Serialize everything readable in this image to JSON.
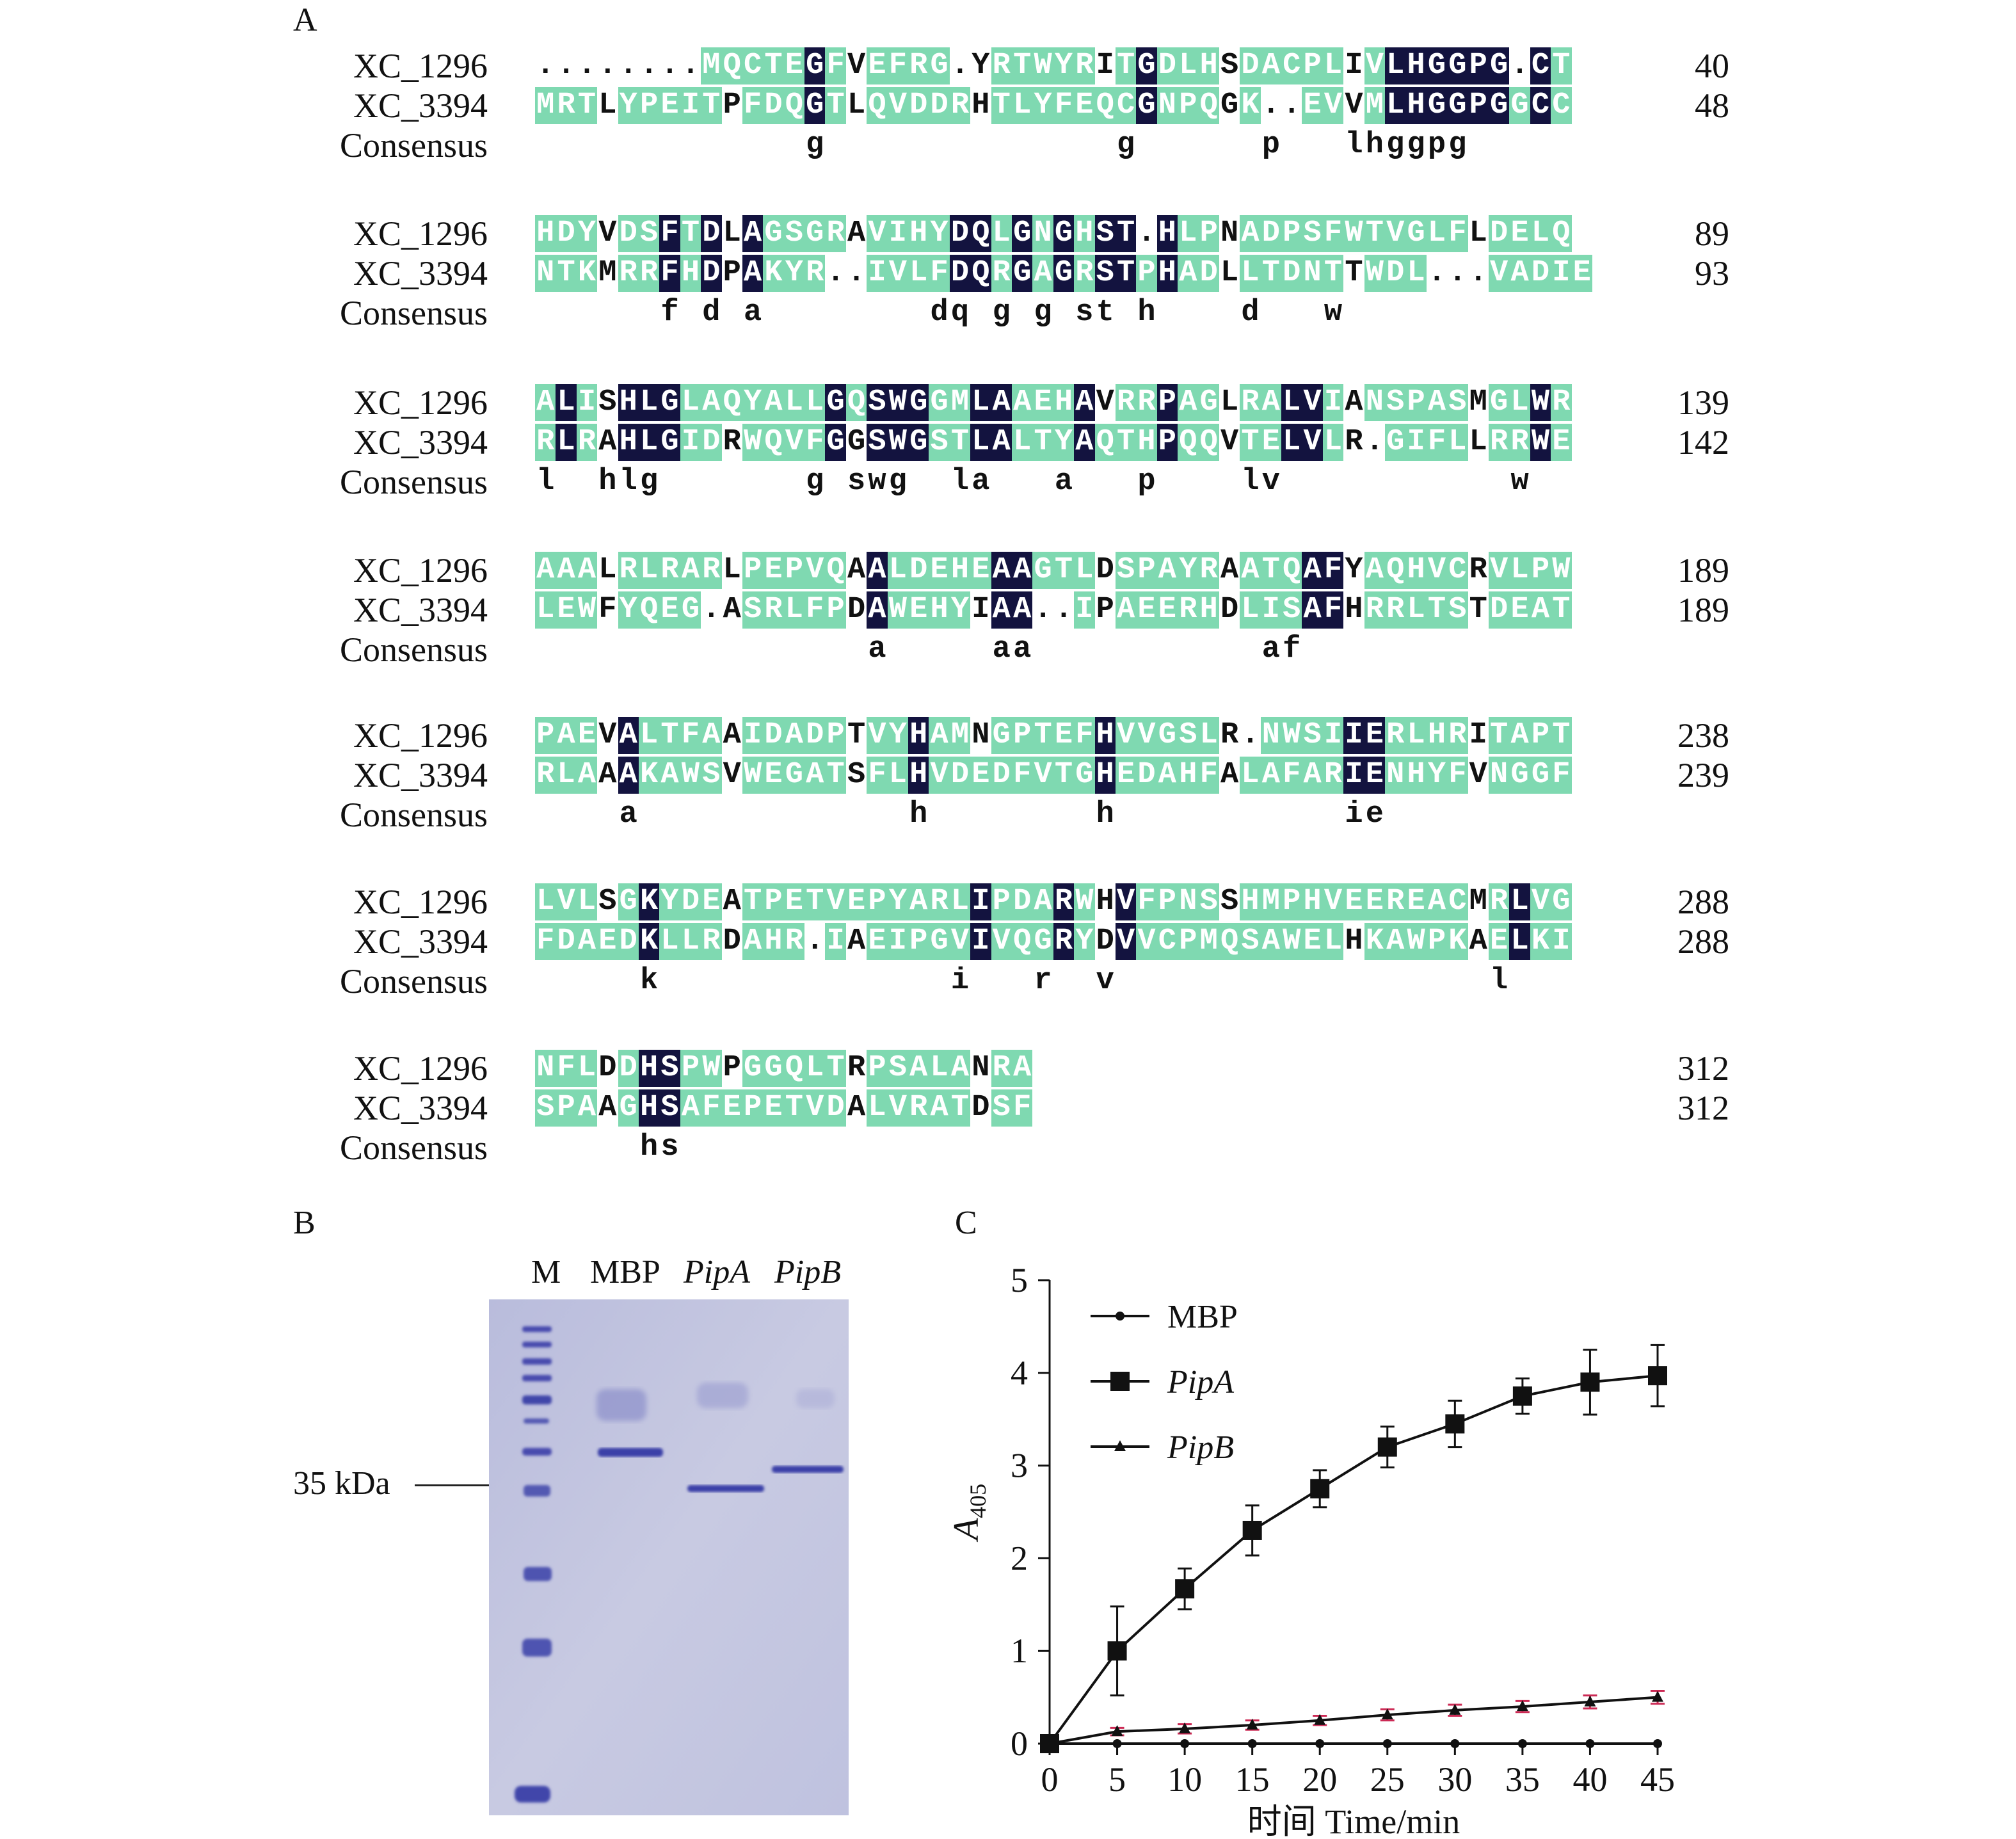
{
  "panel_labels": {
    "a": "A",
    "b": "B",
    "c": "C"
  },
  "alignment": {
    "row_labels": [
      "XC_1296",
      "XC_3394",
      "Consensus"
    ],
    "blocks": [
      {
        "s1": "........MQCTEGFVEFRG.YRTWYRITGDLHSDACPLIVLHGGPG.CT",
        "s2": "MRTLYPEITPFDQGTLQVDDRHTLYFEQCGNPQGK..EVVMLHGGPGGCC",
        "cons": "             g              g      p   lhggpg     ",
        "n1": "40",
        "n2": "48"
      },
      {
        "s1": "HDYVDSFTDLAGSGRAVIHYDQLGNGHST.HLPNADPSFWTVGLFLDELQ",
        "s2": "NTKMRRFHDPAKYR..IVLFDQRGAGRSTPHADLLTDNTTWDL...VADIE",
        "cons": "      f d a        dq g g st h    d   w          ",
        "n1": "89",
        "n2": "93"
      },
      {
        "s1": "ALISHLGLAQYALLGQSWGGMLAAEHAVRRPAGLRALVIANSPASMGLWR",
        "s2": "RLRAHLGIDRWQVFGGSWGSTLALTYAQTHPQQVTELVLR.GIFLLRRWE",
        "cons": "l  hlg       g swg  la   a   p    lv           w ",
        "n1": "139",
        "n2": "142"
      },
      {
        "s1": "AAALRLRARLPEPVQAALDEHEAAGTLDSPAYRAATQAFYAQHVCRVLPW",
        "s2": "LEWFYQEG.ASRLFPDAWEHYIAA..IPAEERHDLISAFHRRLTSTDEAT",
        "cons": "                a     aa           af            ",
        "n1": "189",
        "n2": "189"
      },
      {
        "s1": "PAEVALTFAAIDADPTVYHAMNGPTEFHVVGSLR.NWSIIERLHRITAPT",
        "s2": "RLAAAKAWSVWEGATSFLHVDEDFVTGHEDAHFALAFARIENHYFVNGGF",
        "cons": "    a             h        h           ie        ",
        "n1": "238",
        "n2": "239"
      },
      {
        "s1": "LVLSGKYDEATPETVEPYARLIPDARWHVFPNSSHMPHVEEREACMRLVG",
        "s2": "FDAEDKLLRDAHR.IAEIPGVIVQGRYDVVCPMQSAWELHKAWPKAELKI",
        "cons": "     k              i   r  v                  l  ",
        "n1": "288",
        "n2": "288"
      },
      {
        "s1": "NFLDDHSPWPGGQLTRPSALANRA",
        "s2": "SPAAGHSAFEPETVDALVRATDSF",
        "cons": "     hs                 ",
        "n1": "312",
        "n2": "312"
      }
    ]
  },
  "gel": {
    "lanes": [
      "M",
      "MBP",
      "PipA",
      "PipB"
    ],
    "marker": "35 kDa",
    "colors": {
      "background": "#c2c4de",
      "band": "#3a3fa8"
    }
  },
  "chart_data": {
    "type": "line",
    "xlabel": "时间 Time/min",
    "ylabel": "A405",
    "ylabel_main": "A",
    "ylabel_sub": "405",
    "x": [
      0,
      5,
      10,
      15,
      20,
      25,
      30,
      35,
      40,
      45
    ],
    "xlim": [
      0,
      45
    ],
    "ylim": [
      0,
      5
    ],
    "yticks": [
      0,
      1,
      2,
      3,
      4,
      5
    ],
    "legend_position": "top-left",
    "series": [
      {
        "name": "MBP",
        "marker": "circle",
        "color": "#111111",
        "values": [
          0,
          0,
          0,
          0,
          0,
          0,
          0,
          0,
          0,
          0
        ],
        "errors": [
          0,
          0,
          0,
          0,
          0,
          0,
          0,
          0,
          0,
          0
        ]
      },
      {
        "name": "PipA",
        "marker": "square",
        "color": "#111111",
        "values": [
          0,
          1.0,
          1.67,
          2.3,
          2.75,
          3.2,
          3.45,
          3.75,
          3.9,
          3.97
        ],
        "errors": [
          0,
          0.48,
          0.22,
          0.27,
          0.2,
          0.22,
          0.25,
          0.19,
          0.35,
          0.33
        ]
      },
      {
        "name": "PipB",
        "marker": "triangle",
        "color": "#111111",
        "errorColor": "#cc2a55",
        "values": [
          0,
          0.13,
          0.16,
          0.2,
          0.25,
          0.31,
          0.36,
          0.4,
          0.45,
          0.5
        ],
        "errors": [
          0,
          0.04,
          0.05,
          0.05,
          0.05,
          0.06,
          0.06,
          0.06,
          0.07,
          0.07
        ]
      }
    ]
  }
}
